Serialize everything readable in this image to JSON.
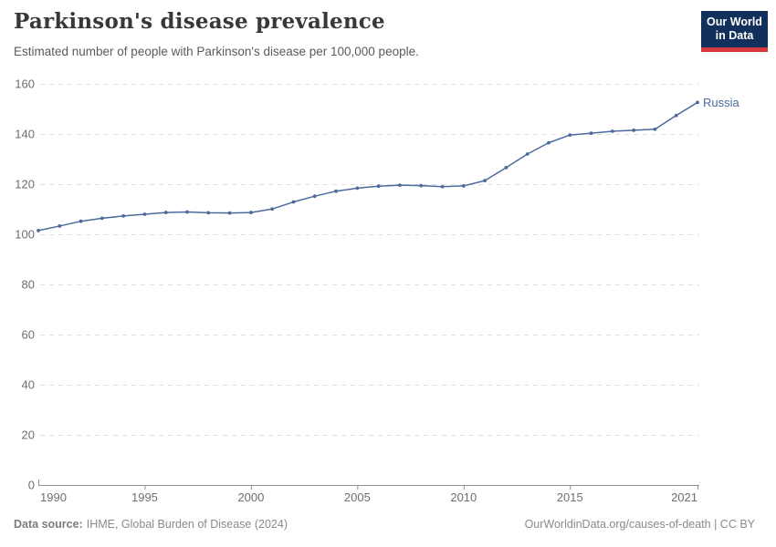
{
  "header": {
    "title": "Parkinson's disease prevalence",
    "subtitle": "Estimated number of people with Parkinson's disease per 100,000 people."
  },
  "logo": {
    "line1": "Our World",
    "line2": "in Data",
    "bg_color": "#12305c",
    "accent_color": "#d7373f"
  },
  "chart_data": {
    "type": "line",
    "title": "Parkinson's disease prevalence",
    "subtitle": "Estimated number of people with Parkinson's disease per 100,000 people.",
    "x": [
      1990,
      1991,
      1992,
      1993,
      1994,
      1995,
      1996,
      1997,
      1998,
      1999,
      2000,
      2001,
      2002,
      2003,
      2004,
      2005,
      2006,
      2007,
      2008,
      2009,
      2010,
      2011,
      2012,
      2013,
      2014,
      2015,
      2016,
      2017,
      2018,
      2019,
      2020,
      2021
    ],
    "series": [
      {
        "name": "Russia",
        "color": "#4c6a9c",
        "values": [
          101.5,
          103.3,
          105.2,
          106.4,
          107.3,
          108.0,
          108.7,
          108.9,
          108.6,
          108.5,
          108.7,
          110.1,
          112.9,
          115.2,
          117.2,
          118.4,
          119.2,
          119.6,
          119.4,
          119.0,
          119.3,
          121.4,
          126.6,
          132.0,
          136.5,
          139.6,
          140.3,
          141.1,
          141.5,
          141.9,
          147.4,
          152.6
        ]
      }
    ],
    "xlabel": "",
    "ylabel": "",
    "ylim": [
      0,
      160
    ],
    "yticks": [
      0,
      20,
      40,
      60,
      80,
      100,
      120,
      140,
      160
    ],
    "xticks": [
      1990,
      1995,
      2000,
      2005,
      2010,
      2015,
      2021
    ],
    "grid": "horizontal-dashed",
    "legend": "end-of-line-label",
    "colors": {
      "gridline": "#dddddd",
      "axis": "#8f8f8f",
      "tick_label": "#6e6e6e"
    }
  },
  "footer": {
    "source_label": "Data source:",
    "source_text": "IHME, Global Burden of Disease (2024)",
    "right_text": "OurWorldinData.org/causes-of-death | CC BY"
  }
}
